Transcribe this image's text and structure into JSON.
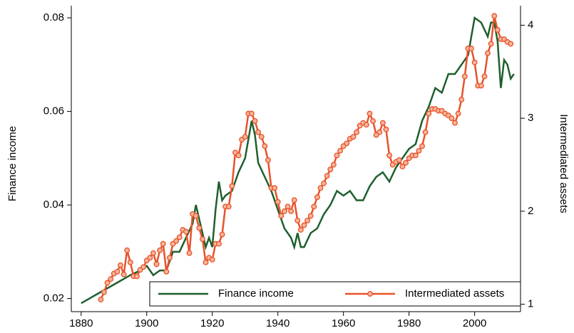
{
  "chart_data": {
    "type": "line",
    "x_label": null,
    "y_label": "Finance income",
    "y2_label": "Intermediated assets",
    "xlim": [
      1877,
      2014
    ],
    "xticks": [
      1880,
      1900,
      1920,
      1940,
      1960,
      1980,
      2000
    ],
    "ylim": [
      0.0172,
      0.0826
    ],
    "yticks": [
      0.02,
      0.04,
      0.06,
      0.08
    ],
    "y2lim": [
      0.92,
      4.21
    ],
    "y2ticks": [
      1,
      2,
      3,
      4
    ],
    "legend": "bottom-right",
    "series": [
      {
        "name": "Finance income",
        "color": "#1f5f2e",
        "axis": "y",
        "x": [
          1880,
          1885,
          1890,
          1895,
          1898,
          1900,
          1902,
          1904,
          1906,
          1908,
          1910,
          1912,
          1914,
          1915,
          1916,
          1917,
          1918,
          1919,
          1920,
          1921,
          1922,
          1923,
          1924,
          1926,
          1928,
          1930,
          1931,
          1932,
          1933,
          1934,
          1936,
          1938,
          1940,
          1942,
          1944,
          1945,
          1946,
          1947,
          1948,
          1950,
          1952,
          1954,
          1956,
          1958,
          1960,
          1962,
          1964,
          1966,
          1968,
          1970,
          1972,
          1974,
          1976,
          1978,
          1980,
          1982,
          1984,
          1986,
          1988,
          1990,
          1992,
          1994,
          1996,
          1998,
          2000,
          2002,
          2004,
          2005,
          2006,
          2007,
          2008,
          2009,
          2010,
          2011,
          2012
        ],
        "values": [
          0.019,
          0.021,
          0.023,
          0.025,
          0.026,
          0.027,
          0.025,
          0.026,
          0.026,
          0.03,
          0.03,
          0.033,
          0.036,
          0.04,
          0.037,
          0.034,
          0.031,
          0.033,
          0.031,
          0.039,
          0.045,
          0.041,
          0.042,
          0.043,
          0.047,
          0.05,
          0.054,
          0.058,
          0.055,
          0.049,
          0.046,
          0.043,
          0.039,
          0.035,
          0.033,
          0.031,
          0.034,
          0.031,
          0.031,
          0.034,
          0.035,
          0.038,
          0.04,
          0.043,
          0.042,
          0.043,
          0.041,
          0.041,
          0.044,
          0.046,
          0.047,
          0.045,
          0.048,
          0.05,
          0.052,
          0.053,
          0.058,
          0.061,
          0.065,
          0.064,
          0.068,
          0.068,
          0.07,
          0.072,
          0.08,
          0.079,
          0.076,
          0.079,
          0.079,
          0.075,
          0.065,
          0.071,
          0.07,
          0.067,
          0.068
        ]
      },
      {
        "name": "Intermediated assets",
        "color": "#e8522a",
        "axis": "y2",
        "marker": "circle",
        "x": [
          1886,
          1887,
          1888,
          1889,
          1890,
          1891,
          1892,
          1893,
          1894,
          1895,
          1896,
          1897,
          1898,
          1899,
          1900,
          1901,
          1902,
          1903,
          1904,
          1905,
          1906,
          1907,
          1908,
          1909,
          1910,
          1911,
          1912,
          1913,
          1914,
          1915,
          1916,
          1917,
          1918,
          1919,
          1920,
          1921,
          1922,
          1923,
          1924,
          1925,
          1926,
          1927,
          1928,
          1929,
          1930,
          1931,
          1932,
          1933,
          1934,
          1935,
          1936,
          1937,
          1938,
          1939,
          1940,
          1941,
          1942,
          1943,
          1944,
          1945,
          1946,
          1947,
          1948,
          1949,
          1950,
          1951,
          1952,
          1953,
          1954,
          1955,
          1956,
          1957,
          1958,
          1959,
          1960,
          1961,
          1962,
          1963,
          1964,
          1965,
          1966,
          1967,
          1968,
          1969,
          1970,
          1971,
          1972,
          1973,
          1974,
          1975,
          1976,
          1977,
          1978,
          1979,
          1980,
          1981,
          1982,
          1983,
          1984,
          1985,
          1986,
          1987,
          1988,
          1989,
          1990,
          1991,
          1992,
          1993,
          1994,
          1995,
          1996,
          1997,
          1998,
          1999,
          2000,
          2001,
          2002,
          2003,
          2004,
          2005,
          2006,
          2007,
          2008,
          2009,
          2010,
          2011
        ],
        "values": [
          1.05,
          1.13,
          1.23,
          1.27,
          1.33,
          1.35,
          1.42,
          1.32,
          1.58,
          1.45,
          1.3,
          1.3,
          1.37,
          1.4,
          1.47,
          1.5,
          1.55,
          1.43,
          1.58,
          1.65,
          1.35,
          1.5,
          1.65,
          1.68,
          1.72,
          1.8,
          1.78,
          1.55,
          1.97,
          1.95,
          1.82,
          1.7,
          1.45,
          1.5,
          1.48,
          1.65,
          1.65,
          1.75,
          2.05,
          2.05,
          2.27,
          2.63,
          2.6,
          2.77,
          2.8,
          3.05,
          3.05,
          2.97,
          2.85,
          2.8,
          2.7,
          2.55,
          2.25,
          2.25,
          2.1,
          1.95,
          2.0,
          2.05,
          2.0,
          2.12,
          1.9,
          1.8,
          1.85,
          1.9,
          1.95,
          2.05,
          2.15,
          2.25,
          2.3,
          2.38,
          2.45,
          2.5,
          2.6,
          2.65,
          2.7,
          2.73,
          2.78,
          2.8,
          2.85,
          2.92,
          2.95,
          2.93,
          3.05,
          2.97,
          2.82,
          2.85,
          2.95,
          2.88,
          2.6,
          2.5,
          2.53,
          2.55,
          2.48,
          2.52,
          2.57,
          2.6,
          2.6,
          2.65,
          2.7,
          2.85,
          3.05,
          3.1,
          3.1,
          3.08,
          3.08,
          3.05,
          3.03,
          3.0,
          2.95,
          3.05,
          3.2,
          3.45,
          3.75,
          3.75,
          3.6,
          3.35,
          3.35,
          3.45,
          3.7,
          3.8,
          4.1,
          3.95,
          3.85,
          3.85,
          3.82,
          3.8
        ]
      }
    ]
  }
}
